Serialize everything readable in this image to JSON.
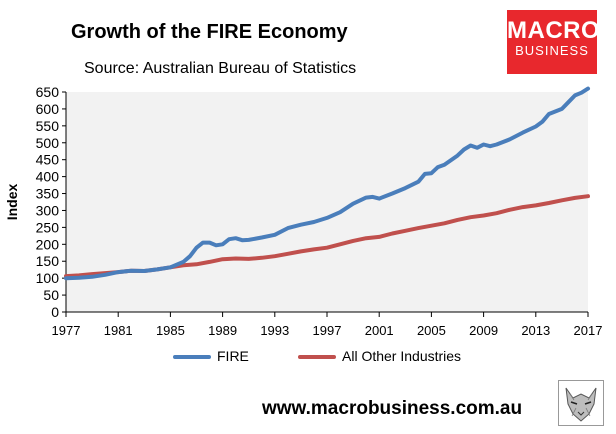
{
  "header": {
    "title": "Growth of the FIRE Economy",
    "subtitle": "Source: Australian Bureau of Statistics"
  },
  "logo": {
    "line1": "MACRO",
    "line2": "BUSINESS",
    "color": "#e8282d"
  },
  "footer": {
    "website": "www.macrobusiness.com.au",
    "wolf_icon": "wolf-logo-icon"
  },
  "chart_data": {
    "type": "line",
    "title": "Growth of the FIRE Economy",
    "subtitle": "Source: Australian Bureau of Statistics",
    "xlabel": "",
    "ylabel": "Index",
    "xlim": [
      1977,
      2017
    ],
    "ylim": [
      0,
      650
    ],
    "x_ticks": [
      "1977",
      "1981",
      "1985",
      "1989",
      "1993",
      "1997",
      "2001",
      "2005",
      "2009",
      "2013",
      "2017"
    ],
    "y_ticks": [
      "0",
      "50",
      "100",
      "150",
      "200",
      "250",
      "300",
      "350",
      "400",
      "450",
      "500",
      "550",
      "600",
      "650"
    ],
    "grid": "none",
    "background": "#f2f2f2",
    "legend": "bottom",
    "series": [
      {
        "name": "FIRE",
        "color": "#4a7ebb",
        "points": [
          [
            1977,
            100
          ],
          [
            1978,
            101
          ],
          [
            1979,
            104
          ],
          [
            1980,
            110
          ],
          [
            1981,
            118
          ],
          [
            1982,
            122
          ],
          [
            1983,
            121
          ],
          [
            1984,
            126
          ],
          [
            1985,
            132
          ],
          [
            1986,
            148
          ],
          [
            1986.5,
            165
          ],
          [
            1987,
            190
          ],
          [
            1987.5,
            205
          ],
          [
            1988,
            205
          ],
          [
            1988.5,
            197
          ],
          [
            1989,
            200
          ],
          [
            1989.5,
            215
          ],
          [
            1990,
            218
          ],
          [
            1990.5,
            212
          ],
          [
            1991,
            213
          ],
          [
            1992,
            220
          ],
          [
            1993,
            228
          ],
          [
            1994,
            248
          ],
          [
            1995,
            258
          ],
          [
            1996,
            266
          ],
          [
            1997,
            278
          ],
          [
            1998,
            295
          ],
          [
            1999,
            320
          ],
          [
            2000,
            338
          ],
          [
            2000.5,
            340
          ],
          [
            2001,
            335
          ],
          [
            2002,
            350
          ],
          [
            2003,
            366
          ],
          [
            2004,
            385
          ],
          [
            2004.5,
            408
          ],
          [
            2005,
            410
          ],
          [
            2005.5,
            428
          ],
          [
            2006,
            435
          ],
          [
            2007,
            462
          ],
          [
            2007.5,
            480
          ],
          [
            2008,
            492
          ],
          [
            2008.5,
            485
          ],
          [
            2009,
            495
          ],
          [
            2009.5,
            490
          ],
          [
            2010,
            495
          ],
          [
            2011,
            510
          ],
          [
            2012,
            530
          ],
          [
            2013,
            548
          ],
          [
            2013.5,
            562
          ],
          [
            2014,
            585
          ],
          [
            2015,
            600
          ],
          [
            2015.5,
            620
          ],
          [
            2016,
            640
          ],
          [
            2016.5,
            648
          ],
          [
            2017,
            660
          ]
        ]
      },
      {
        "name": "All Other Industries",
        "color": "#c0504d",
        "points": [
          [
            1977,
            106
          ],
          [
            1978,
            108
          ],
          [
            1979,
            112
          ],
          [
            1980,
            115
          ],
          [
            1981,
            118
          ],
          [
            1982,
            122
          ],
          [
            1983,
            121
          ],
          [
            1984,
            126
          ],
          [
            1985,
            132
          ],
          [
            1986,
            138
          ],
          [
            1987,
            141
          ],
          [
            1988,
            148
          ],
          [
            1989,
            156
          ],
          [
            1990,
            158
          ],
          [
            1991,
            157
          ],
          [
            1992,
            160
          ],
          [
            1993,
            165
          ],
          [
            1994,
            172
          ],
          [
            1995,
            179
          ],
          [
            1996,
            185
          ],
          [
            1997,
            190
          ],
          [
            1998,
            200
          ],
          [
            1999,
            210
          ],
          [
            2000,
            218
          ],
          [
            2001,
            222
          ],
          [
            2002,
            232
          ],
          [
            2003,
            240
          ],
          [
            2004,
            248
          ],
          [
            2005,
            255
          ],
          [
            2006,
            262
          ],
          [
            2007,
            272
          ],
          [
            2008,
            280
          ],
          [
            2009,
            285
          ],
          [
            2010,
            292
          ],
          [
            2011,
            302
          ],
          [
            2012,
            310
          ],
          [
            2013,
            315
          ],
          [
            2014,
            322
          ],
          [
            2015,
            330
          ],
          [
            2016,
            337
          ],
          [
            2017,
            342
          ]
        ]
      }
    ]
  }
}
